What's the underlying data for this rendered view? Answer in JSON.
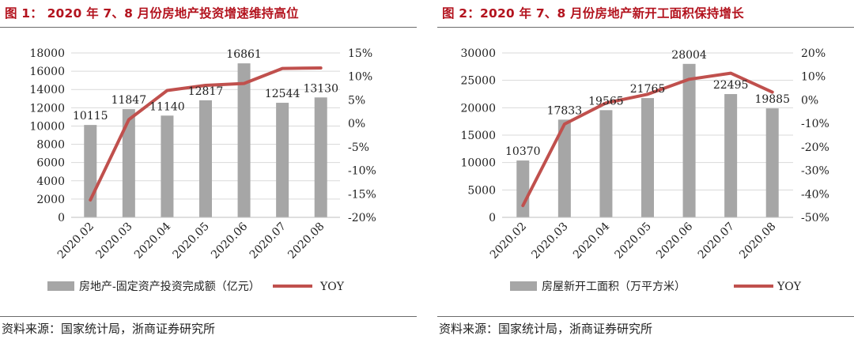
{
  "colors": {
    "bar": "#a6a6a6",
    "line": "#c0504d",
    "title": "#b3131e",
    "grid": "#d9d9d9"
  },
  "chart_data": [
    {
      "type": "bar",
      "title": "图 1： 2020 年 7、8 月份房地产投资增速维持高位",
      "source": "资料来源：国家统计局，浙商证券研究所",
      "categories": [
        "2020.02",
        "2020.03",
        "2020.04",
        "2020.05",
        "2020.06",
        "2020.07",
        "2020.08"
      ],
      "series": [
        {
          "name": "房地产-固定资产投资完成额（亿元）",
          "type": "bar",
          "axis": "left",
          "values": [
            10115,
            11847,
            11140,
            12817,
            16861,
            12544,
            13130
          ],
          "labels": [
            "10115",
            "11847",
            "11140",
            "12817",
            "16861",
            "12544",
            "13130"
          ]
        },
        {
          "name": "YOY",
          "type": "line",
          "axis": "right",
          "values": [
            -16.3,
            0.8,
            7.0,
            8.1,
            8.5,
            11.7,
            11.8
          ]
        }
      ],
      "ylim_left": [
        0,
        18000
      ],
      "yticks_left": [
        "0",
        "2000",
        "4000",
        "6000",
        "8000",
        "10000",
        "12000",
        "14000",
        "16000",
        "18000"
      ],
      "ylim_right": [
        -20,
        15
      ],
      "yticks_right": [
        "-20%",
        "-15%",
        "-10%",
        "-5%",
        "0%",
        "5%",
        "10%",
        "15%"
      ],
      "grid": true,
      "legend_position": "bottom"
    },
    {
      "type": "bar",
      "title": "图 2：2020 年 7、8 月份房地产新开工面积保持增长",
      "source": "资料来源：国家统计局，浙商证券研究所",
      "categories": [
        "2020.02",
        "2020.03",
        "2020.04",
        "2020.05",
        "2020.06",
        "2020.07",
        "2020.08"
      ],
      "series": [
        {
          "name": "房屋新开工面积（万平方米）",
          "type": "bar",
          "axis": "left",
          "values": [
            10370,
            17833,
            19565,
            21765,
            28004,
            22495,
            19885
          ],
          "labels": [
            "10370",
            "17833",
            "19565",
            "21765",
            "28004",
            "22495",
            "19885"
          ]
        },
        {
          "name": "YOY",
          "type": "line",
          "axis": "right",
          "values": [
            -45.0,
            -10.3,
            -1.3,
            2.4,
            8.8,
            11.4,
            3.3
          ]
        }
      ],
      "ylim_left": [
        0,
        30000
      ],
      "yticks_left": [
        "0",
        "5000",
        "10000",
        "15000",
        "20000",
        "25000",
        "30000"
      ],
      "ylim_right": [
        -50,
        20
      ],
      "yticks_right": [
        "-50%",
        "-40%",
        "-30%",
        "-20%",
        "-10%",
        "0%",
        "10%",
        "20%"
      ],
      "grid": true,
      "legend_position": "bottom"
    }
  ]
}
